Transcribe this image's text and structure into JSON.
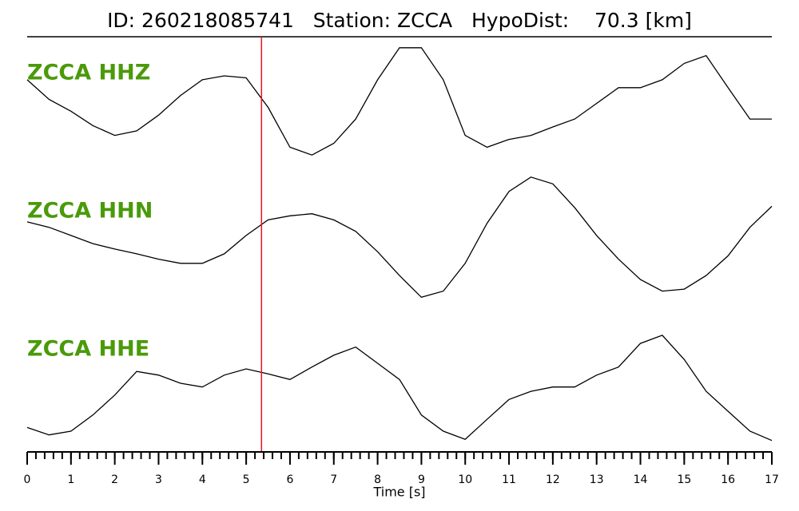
{
  "chart_data": {
    "type": "line",
    "title": "ID: 260218085741   Station: ZCCA   HypoDist:    70.3 [km]",
    "xlabel": "Time [s]",
    "x": [
      0,
      0.5,
      1,
      1.5,
      2,
      2.5,
      3,
      3.5,
      4,
      4.5,
      5,
      5.5,
      6,
      6.5,
      7,
      7.5,
      8,
      8.5,
      9,
      9.5,
      10,
      10.5,
      11,
      11.5,
      12,
      12.5,
      13,
      13.5,
      14,
      14.5,
      15,
      15.5,
      16,
      16.5,
      17
    ],
    "xlim": [
      0,
      17
    ],
    "xticks": [
      0,
      1,
      2,
      3,
      4,
      5,
      6,
      7,
      8,
      9,
      10,
      11,
      12,
      13,
      14,
      15,
      16,
      17
    ],
    "xminor": 0.2,
    "ylim": [
      -1,
      1
    ],
    "label_color": "#4a9a0a",
    "vlines": [
      {
        "x": 5.35,
        "color": "#e8141c"
      }
    ],
    "series": [
      {
        "name": "ZCCA HHZ",
        "color": "#000000",
        "values": [
          0.33,
          0.03,
          -0.15,
          -0.37,
          -0.52,
          -0.45,
          -0.21,
          0.09,
          0.33,
          0.39,
          0.36,
          -0.09,
          -0.7,
          -0.82,
          -0.64,
          -0.27,
          0.33,
          0.82,
          0.82,
          0.33,
          -0.52,
          -0.7,
          -0.58,
          -0.52,
          -0.39,
          -0.27,
          -0.03,
          0.21,
          0.21,
          0.33,
          0.58,
          0.7,
          0.21,
          -0.27,
          -0.27
        ]
      },
      {
        "name": "ZCCA HHN",
        "color": "#000000",
        "values": [
          0.26,
          0.18,
          0.06,
          -0.06,
          -0.14,
          -0.21,
          -0.29,
          -0.35,
          -0.35,
          -0.21,
          0.06,
          0.29,
          0.35,
          0.38,
          0.29,
          0.12,
          -0.18,
          -0.53,
          -0.85,
          -0.76,
          -0.35,
          0.24,
          0.71,
          0.92,
          0.82,
          0.47,
          0.06,
          -0.29,
          -0.59,
          -0.76,
          -0.73,
          -0.53,
          -0.24,
          0.18,
          0.49
        ]
      },
      {
        "name": "ZCCA HHE",
        "color": "#000000",
        "values": [
          -0.62,
          -0.74,
          -0.68,
          -0.42,
          -0.1,
          0.28,
          0.22,
          0.09,
          0.03,
          0.22,
          0.32,
          0.24,
          0.15,
          0.35,
          0.54,
          0.67,
          0.41,
          0.15,
          -0.42,
          -0.68,
          -0.81,
          -0.49,
          -0.17,
          -0.04,
          0.03,
          0.03,
          0.22,
          0.35,
          0.73,
          0.86,
          0.47,
          -0.04,
          -0.36,
          -0.68,
          -0.83
        ]
      }
    ]
  }
}
